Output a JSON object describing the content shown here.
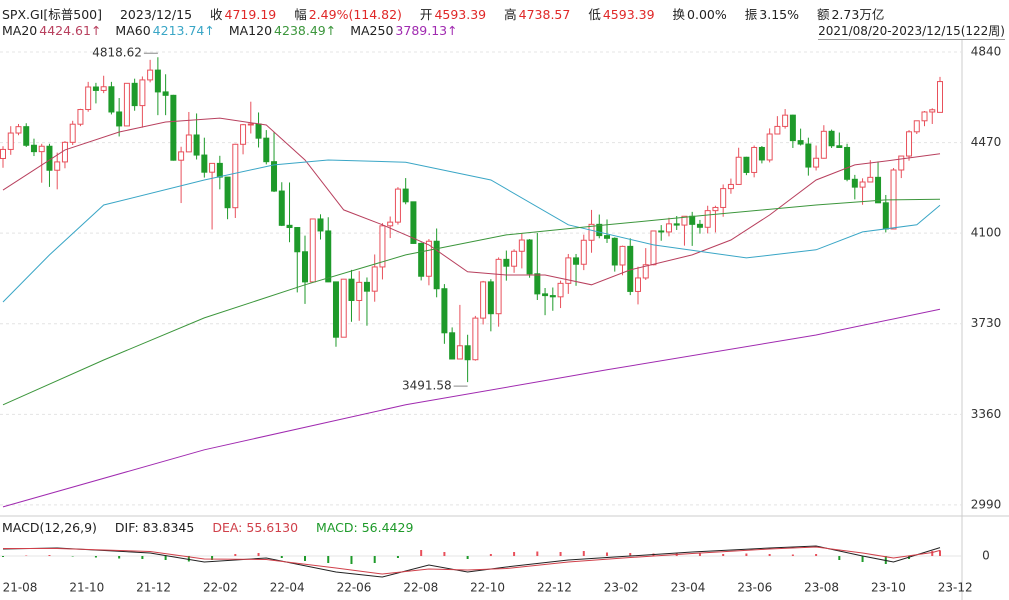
{
  "chart_data": {
    "type": "candlestick",
    "title": "SPX.GI[标普500]",
    "date": "2023/12/15",
    "quote_labels": {
      "close": "收",
      "change": "幅",
      "open": "开",
      "high": "高",
      "low": "低",
      "turnover": "换",
      "amplitude": "振",
      "amount": "额"
    },
    "change": "2.49%(114.82)",
    "turnover": "0.00%",
    "amplitude": "3.15%",
    "amount": "2.73万亿",
    "range_label": "2021/08/20-2023/12/15(122周)",
    "up_color": "#e8505b",
    "down_color": "#1e9a2a",
    "ylim": [
      2961,
      4889
    ],
    "yticks": [
      4840,
      4470,
      4100,
      3730,
      3360,
      2990
    ],
    "grid": true,
    "x_labels": [
      "21-08",
      "21-10",
      "21-12",
      "22-02",
      "22-04",
      "22-06",
      "22-08",
      "22-10",
      "22-12",
      "23-02",
      "23-04",
      "23-06",
      "23-08",
      "23-10",
      "23-12"
    ],
    "open": [
      4405,
      4442,
      4509,
      4535,
      4459,
      4433,
      4455,
      4357,
      4391,
      4471,
      4545,
      4605,
      4697,
      4683,
      4698,
      4595,
      4538,
      4712,
      4621,
      4726,
      4766,
      4677,
      4663,
      4398,
      4432,
      4501,
      4419,
      4349,
      4385,
      4329,
      4204,
      4463,
      4543,
      4546,
      4488,
      4392,
      4272,
      4132,
      4123,
      4024,
      3901,
      4158,
      4109,
      3901,
      3675,
      3912,
      3825,
      3899,
      3863,
      3962,
      4130,
      4145,
      4280,
      4228,
      4058,
      3924,
      4067,
      3873,
      3693,
      3586,
      3640,
      3583,
      3753,
      3901,
      3771,
      3993,
      3965,
      4026,
      4072,
      3934,
      3852,
      3845,
      3840,
      3895,
      3999,
      3973,
      4071,
      4136,
      4090,
      4079,
      3970,
      4046,
      3862,
      3917,
      3971,
      4109,
      4105,
      4138,
      4133,
      4169,
      4136,
      4124,
      4192,
      4205,
      4282,
      4299,
      4410,
      4348,
      4450,
      4399,
      4505,
      4536,
      4582,
      4478,
      4464,
      4370,
      4406,
      4516,
      4457,
      4450,
      4320,
      4288,
      4309,
      4328,
      4224,
      4117,
      4358,
      4415,
      4514,
      4559,
      4595,
      4593.39
    ],
    "high": [
      4455,
      4537,
      4546,
      4549,
      4486,
      4465,
      4465,
      4429,
      4476,
      4559,
      4608,
      4718,
      4714,
      4743,
      4718,
      4652,
      4713,
      4731,
      4740,
      4808,
      4818.62,
      4749,
      4665,
      4453,
      4595,
      4589,
      4490,
      4386,
      4416,
      4329,
      4465,
      4546,
      4637,
      4593,
      4521,
      4513,
      4308,
      4307,
      4125,
      4090,
      4158,
      4177,
      4165,
      3902,
      3913,
      3950,
      3945,
      3919,
      4013,
      4141,
      4168,
      4288,
      4325,
      4229,
      4062,
      4076,
      4119,
      3892,
      3715,
      3807,
      3685,
      3762,
      3905,
      3912,
      4001,
      4029,
      4034,
      4100,
      4076,
      4101,
      3876,
      3878,
      3906,
      4015,
      4015,
      4094,
      4195,
      4176,
      4156,
      4083,
      4049,
      4079,
      3963,
      4039,
      4110,
      4133,
      4163,
      4170,
      4170,
      4187,
      4154,
      4212,
      4212,
      4299,
      4323,
      4449,
      4412,
      4458,
      4456,
      4528,
      4578,
      4607,
      4584,
      4527,
      4490,
      4458,
      4541,
      4523,
      4511,
      4465,
      4338,
      4324,
      4398,
      4393,
      4256,
      4366,
      4415,
      4521,
      4560,
      4599,
      4610,
      4738.57
    ],
    "low": [
      4367,
      4420,
      4500,
      4452,
      4415,
      4306,
      4289,
      4279,
      4365,
      4460,
      4537,
      4596,
      4630,
      4672,
      4585,
      4495,
      4538,
      4600,
      4531,
      4716,
      4582,
      4582,
      4396,
      4223,
      4432,
      4401,
      4327,
      4115,
      4279,
      4157,
      4162,
      4422,
      4507,
      4450,
      4381,
      4268,
      4129,
      4063,
      3858,
      3811,
      3901,
      4074,
      3900,
      3636,
      3675,
      3738,
      3742,
      3722,
      3820,
      3911,
      4080,
      4135,
      4218,
      4057,
      3907,
      3887,
      3838,
      3648,
      3584,
      3589,
      3491.58,
      3579,
      3727,
      3699,
      3718,
      3906,
      3938,
      3956,
      3918,
      3827,
      3765,
      3783,
      3794,
      3852,
      3885,
      3949,
      4020,
      4079,
      4060,
      3943,
      3928,
      3847,
      3809,
      3909,
      3969,
      4069,
      4087,
      4113,
      4049,
      4048,
      4098,
      4099,
      4103,
      4167,
      4261,
      4299,
      4337,
      4328,
      4385,
      4389,
      4504,
      4527,
      4448,
      4458,
      4335,
      4356,
      4404,
      4448,
      4448,
      4312,
      4238,
      4216,
      4307,
      4223,
      4103,
      4116,
      4325,
      4396,
      4505,
      4537,
      4546,
      4593.39
    ],
    "close": [
      4442,
      4509,
      4535,
      4459,
      4433,
      4455,
      4357,
      4391,
      4471,
      4545,
      4605,
      4697,
      4683,
      4698,
      4595,
      4538,
      4712,
      4621,
      4726,
      4766,
      4677,
      4663,
      4398,
      4432,
      4501,
      4419,
      4349,
      4385,
      4329,
      4204,
      4463,
      4543,
      4546,
      4488,
      4392,
      4272,
      4132,
      4123,
      4024,
      3901,
      4158,
      4109,
      3901,
      3675,
      3912,
      3825,
      3899,
      3863,
      3962,
      4130,
      4145,
      4280,
      4228,
      4058,
      3924,
      4067,
      3873,
      3693,
      3586,
      3640,
      3583,
      3753,
      3901,
      3771,
      3993,
      3965,
      4026,
      4072,
      3934,
      3852,
      3845,
      3840,
      3895,
      3999,
      3973,
      4071,
      4136,
      4090,
      4079,
      3970,
      4046,
      3862,
      3917,
      3971,
      4109,
      4105,
      4138,
      4133,
      4169,
      4136,
      4124,
      4192,
      4205,
      4282,
      4299,
      4410,
      4348,
      4450,
      4399,
      4505,
      4536,
      4582,
      4478,
      4464,
      4370,
      4406,
      4516,
      4457,
      4450,
      4320,
      4288,
      4309,
      4328,
      4224,
      4117,
      4358,
      4415,
      4514,
      4559,
      4595,
      4604,
      4719.19
    ],
    "ma": [
      {
        "name": "MA20",
        "color": "#b8405e",
        "legend_value": "4424.61↑",
        "x": [
          0,
          8,
          15,
          21,
          28,
          34,
          39,
          44,
          49,
          55,
          60,
          65,
          70,
          76,
          81,
          89,
          94,
          99,
          105,
          110,
          115,
          121
        ],
        "values": [
          4276,
          4440,
          4513,
          4554,
          4570,
          4542,
          4399,
          4195,
          4134,
          4052,
          3942,
          3929,
          3929,
          3889,
          3950,
          4011,
          4072,
          4174,
          4317,
          4379,
          4399,
          4424.61
        ]
      },
      {
        "name": "MA60",
        "color": "#3aa6c6",
        "legend_value": "4213.74↑",
        "x": [
          0,
          6,
          13,
          26,
          35,
          42,
          52,
          63,
          73,
          84,
          96,
          105,
          111,
          118,
          121
        ],
        "values": [
          3819,
          4011,
          4215,
          4317,
          4379,
          4399,
          4390,
          4317,
          4134,
          4052,
          3999,
          4032,
          4105,
          4134,
          4213.74
        ]
      },
      {
        "name": "MA120",
        "color": "#3c963c",
        "legend_value": "4238.49↑",
        "x": [
          0,
          13,
          26,
          39,
          52,
          65,
          78,
          91,
          105,
          114,
          121
        ],
        "values": [
          3399,
          3582,
          3754,
          3889,
          4011,
          4093,
          4134,
          4174,
          4215,
          4236,
          4238.49
        ]
      },
      {
        "name": "MA250",
        "color": "#a02ab0",
        "legend_value": "3789.13↑",
        "x": [
          0,
          26,
          52,
          78,
          105,
          121
        ],
        "values": [
          2982,
          3215,
          3399,
          3542,
          3684,
          3789.13
        ]
      }
    ],
    "macd": {
      "title": "MACD(12,26,9)",
      "ylim": [
        -420,
        180
      ],
      "yticks": [
        0
      ],
      "dif": {
        "label": "DIF: 83.8345",
        "color": "#222222",
        "x": [
          0,
          7,
          19,
          26,
          34,
          43,
          49,
          55,
          60,
          65,
          73,
          81,
          89,
          99,
          105,
          111,
          115,
          120,
          121
        ],
        "values": [
          70,
          80,
          30,
          -60,
          -20,
          -160,
          -210,
          -90,
          -160,
          -110,
          -40,
          0,
          40,
          80,
          100,
          0,
          -60,
          60,
          83.8345
        ]
      },
      "dea": {
        "label": "DEA: 55.6130",
        "color": "#d0404a",
        "x": [
          0,
          7,
          19,
          26,
          34,
          43,
          49,
          55,
          60,
          65,
          73,
          81,
          89,
          99,
          105,
          111,
          115,
          120,
          121
        ],
        "values": [
          75,
          75,
          45,
          -30,
          -35,
          -120,
          -180,
          -130,
          -140,
          -125,
          -60,
          -15,
          25,
          70,
          90,
          30,
          -20,
          35,
          55.613
        ]
      },
      "hist": {
        "label": "MACD: 56.4429",
        "color": "#1e9a2a",
        "x": [
          0,
          3,
          6,
          9,
          12,
          15,
          18,
          21,
          24,
          27,
          30,
          33,
          36,
          39,
          42,
          45,
          48,
          51,
          54,
          57,
          60,
          63,
          66,
          69,
          72,
          75,
          78,
          81,
          84,
          87,
          90,
          93,
          96,
          99,
          102,
          105,
          108,
          111,
          114,
          117,
          120,
          121
        ],
        "values": [
          -10,
          5,
          10,
          -5,
          -15,
          -25,
          -30,
          -40,
          -55,
          -40,
          20,
          30,
          -20,
          -50,
          -70,
          -80,
          -70,
          -20,
          60,
          40,
          -30,
          20,
          40,
          45,
          40,
          50,
          35,
          30,
          25,
          30,
          25,
          20,
          25,
          20,
          15,
          20,
          -40,
          -60,
          -80,
          -30,
          50,
          56.4429
        ]
      }
    }
  }
}
